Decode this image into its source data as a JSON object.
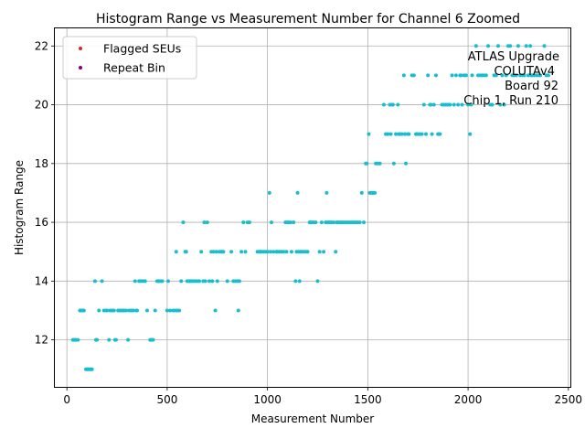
{
  "chart_data": {
    "type": "scatter",
    "title": "Histogram Range vs Measurement Number for Channel 6 Zoomed",
    "xlabel": "Measurement Number",
    "ylabel": "Histogram Range",
    "xlim": [
      -60,
      2510
    ],
    "ylim": [
      10.4,
      22.6
    ],
    "xticks": [
      0,
      500,
      1000,
      1500,
      2000,
      2500
    ],
    "yticks": [
      12,
      14,
      16,
      18,
      20,
      22
    ],
    "grid": true,
    "legend_position": "top-left",
    "legend": [
      {
        "label": "Flagged SEUs",
        "color": "#d62728"
      },
      {
        "label": "Repeat Bin",
        "color": "#800080"
      }
    ],
    "annotation": [
      "ATLAS Upgrade",
      "COLUTAv4",
      "Board 92",
      "Chip 1, Run 210"
    ],
    "point_color": "#17becf",
    "series": [
      {
        "points": [
          [
            30,
            12
          ],
          [
            35,
            12
          ],
          [
            40,
            12
          ],
          [
            45,
            12
          ],
          [
            55,
            12
          ],
          [
            65,
            13
          ],
          [
            70,
            13
          ],
          [
            75,
            13
          ],
          [
            80,
            13
          ],
          [
            85,
            13
          ],
          [
            95,
            11
          ],
          [
            100,
            11
          ],
          [
            105,
            11
          ],
          [
            110,
            11
          ],
          [
            115,
            11
          ],
          [
            120,
            11
          ],
          [
            125,
            11
          ],
          [
            140,
            14
          ],
          [
            145,
            12
          ],
          [
            150,
            12
          ],
          [
            160,
            13
          ],
          [
            175,
            14
          ],
          [
            185,
            13
          ],
          [
            195,
            13
          ],
          [
            200,
            13
          ],
          [
            210,
            12
          ],
          [
            215,
            13
          ],
          [
            225,
            13
          ],
          [
            235,
            13
          ],
          [
            240,
            12
          ],
          [
            245,
            12
          ],
          [
            255,
            13
          ],
          [
            265,
            13
          ],
          [
            270,
            13
          ],
          [
            280,
            13
          ],
          [
            285,
            13
          ],
          [
            295,
            13
          ],
          [
            305,
            12
          ],
          [
            310,
            13
          ],
          [
            320,
            13
          ],
          [
            330,
            13
          ],
          [
            340,
            14
          ],
          [
            345,
            13
          ],
          [
            350,
            13
          ],
          [
            360,
            14
          ],
          [
            370,
            14
          ],
          [
            380,
            14
          ],
          [
            390,
            14
          ],
          [
            400,
            13
          ],
          [
            415,
            12
          ],
          [
            420,
            12
          ],
          [
            425,
            12
          ],
          [
            430,
            12
          ],
          [
            440,
            13
          ],
          [
            450,
            14
          ],
          [
            455,
            14
          ],
          [
            460,
            14
          ],
          [
            470,
            14
          ],
          [
            475,
            14
          ],
          [
            500,
            13
          ],
          [
            505,
            14
          ],
          [
            515,
            13
          ],
          [
            530,
            13
          ],
          [
            540,
            13
          ],
          [
            545,
            15
          ],
          [
            550,
            13
          ],
          [
            560,
            13
          ],
          [
            570,
            14
          ],
          [
            580,
            16
          ],
          [
            590,
            15
          ],
          [
            595,
            15
          ],
          [
            600,
            14
          ],
          [
            610,
            14
          ],
          [
            615,
            14
          ],
          [
            620,
            14
          ],
          [
            630,
            14
          ],
          [
            640,
            14
          ],
          [
            650,
            14
          ],
          [
            660,
            14
          ],
          [
            670,
            15
          ],
          [
            680,
            14
          ],
          [
            685,
            16
          ],
          [
            690,
            14
          ],
          [
            700,
            16
          ],
          [
            710,
            14
          ],
          [
            720,
            15
          ],
          [
            725,
            14
          ],
          [
            730,
            15
          ],
          [
            740,
            13
          ],
          [
            745,
            15
          ],
          [
            750,
            14
          ],
          [
            760,
            15
          ],
          [
            770,
            15
          ],
          [
            775,
            15
          ],
          [
            780,
            15
          ],
          [
            800,
            14
          ],
          [
            820,
            15
          ],
          [
            830,
            14
          ],
          [
            840,
            14
          ],
          [
            850,
            14
          ],
          [
            855,
            13
          ],
          [
            860,
            14
          ],
          [
            870,
            15
          ],
          [
            880,
            16
          ],
          [
            890,
            15
          ],
          [
            900,
            16
          ],
          [
            910,
            16
          ],
          [
            950,
            15
          ],
          [
            960,
            15
          ],
          [
            965,
            15
          ],
          [
            970,
            15
          ],
          [
            980,
            15
          ],
          [
            990,
            15
          ],
          [
            1000,
            15
          ],
          [
            1010,
            17
          ],
          [
            1015,
            15
          ],
          [
            1020,
            16
          ],
          [
            1030,
            15
          ],
          [
            1045,
            15
          ],
          [
            1050,
            15
          ],
          [
            1060,
            15
          ],
          [
            1070,
            15
          ],
          [
            1080,
            15
          ],
          [
            1090,
            16
          ],
          [
            1095,
            15
          ],
          [
            1100,
            16
          ],
          [
            1105,
            16
          ],
          [
            1115,
            16
          ],
          [
            1120,
            15
          ],
          [
            1130,
            16
          ],
          [
            1140,
            14
          ],
          [
            1145,
            15
          ],
          [
            1150,
            17
          ],
          [
            1155,
            15
          ],
          [
            1160,
            14
          ],
          [
            1165,
            15
          ],
          [
            1170,
            15
          ],
          [
            1180,
            15
          ],
          [
            1190,
            15
          ],
          [
            1200,
            15
          ],
          [
            1210,
            16
          ],
          [
            1215,
            16
          ],
          [
            1220,
            16
          ],
          [
            1230,
            16
          ],
          [
            1240,
            16
          ],
          [
            1250,
            14
          ],
          [
            1260,
            15
          ],
          [
            1270,
            16
          ],
          [
            1280,
            15
          ],
          [
            1290,
            16
          ],
          [
            1295,
            17
          ],
          [
            1300,
            16
          ],
          [
            1305,
            16
          ],
          [
            1310,
            16
          ],
          [
            1320,
            16
          ],
          [
            1330,
            16
          ],
          [
            1340,
            15
          ],
          [
            1345,
            16
          ],
          [
            1350,
            16
          ],
          [
            1360,
            16
          ],
          [
            1370,
            16
          ],
          [
            1380,
            16
          ],
          [
            1390,
            16
          ],
          [
            1400,
            16
          ],
          [
            1410,
            16
          ],
          [
            1420,
            16
          ],
          [
            1430,
            16
          ],
          [
            1440,
            16
          ],
          [
            1450,
            16
          ],
          [
            1460,
            16
          ],
          [
            1470,
            17
          ],
          [
            1480,
            16
          ],
          [
            1490,
            18
          ],
          [
            1495,
            18
          ],
          [
            1505,
            19
          ],
          [
            1510,
            17
          ],
          [
            1515,
            17
          ],
          [
            1520,
            17
          ],
          [
            1525,
            17
          ],
          [
            1530,
            17
          ],
          [
            1535,
            17
          ],
          [
            1540,
            18
          ],
          [
            1550,
            18
          ],
          [
            1560,
            18
          ],
          [
            1580,
            20
          ],
          [
            1590,
            19
          ],
          [
            1600,
            19
          ],
          [
            1610,
            20
          ],
          [
            1615,
            19
          ],
          [
            1620,
            20
          ],
          [
            1625,
            20
          ],
          [
            1630,
            18
          ],
          [
            1640,
            19
          ],
          [
            1650,
            20
          ],
          [
            1655,
            19
          ],
          [
            1660,
            19
          ],
          [
            1670,
            19
          ],
          [
            1680,
            21
          ],
          [
            1685,
            19
          ],
          [
            1690,
            18
          ],
          [
            1700,
            19
          ],
          [
            1705,
            19
          ],
          [
            1720,
            21
          ],
          [
            1730,
            21
          ],
          [
            1740,
            19
          ],
          [
            1745,
            19
          ],
          [
            1750,
            19
          ],
          [
            1760,
            19
          ],
          [
            1770,
            19
          ],
          [
            1780,
            20
          ],
          [
            1790,
            19
          ],
          [
            1800,
            21
          ],
          [
            1810,
            20
          ],
          [
            1815,
            20
          ],
          [
            1820,
            19
          ],
          [
            1830,
            20
          ],
          [
            1840,
            21
          ],
          [
            1850,
            19
          ],
          [
            1855,
            19
          ],
          [
            1860,
            19
          ],
          [
            1870,
            20
          ],
          [
            1880,
            20
          ],
          [
            1890,
            20
          ],
          [
            1900,
            20
          ],
          [
            1910,
            20
          ],
          [
            1920,
            21
          ],
          [
            1930,
            20
          ],
          [
            1940,
            21
          ],
          [
            1950,
            20
          ],
          [
            1960,
            21
          ],
          [
            1965,
            21
          ],
          [
            1970,
            20
          ],
          [
            1980,
            21
          ],
          [
            1990,
            21
          ],
          [
            2000,
            20
          ],
          [
            2010,
            19
          ],
          [
            2015,
            20
          ],
          [
            2020,
            21
          ],
          [
            2040,
            22
          ],
          [
            2050,
            21
          ],
          [
            2060,
            21
          ],
          [
            2070,
            21
          ],
          [
            2080,
            21
          ],
          [
            2090,
            21
          ],
          [
            2100,
            22
          ],
          [
            2110,
            20
          ],
          [
            2120,
            20
          ],
          [
            2130,
            21
          ],
          [
            2140,
            21
          ],
          [
            2150,
            22
          ],
          [
            2160,
            20
          ],
          [
            2170,
            21
          ],
          [
            2180,
            20
          ],
          [
            2190,
            21
          ],
          [
            2200,
            22
          ],
          [
            2210,
            22
          ],
          [
            2220,
            21
          ],
          [
            2230,
            21
          ],
          [
            2240,
            21
          ],
          [
            2250,
            22
          ],
          [
            2260,
            21
          ],
          [
            2270,
            21
          ],
          [
            2280,
            21
          ],
          [
            2290,
            22
          ],
          [
            2300,
            21
          ],
          [
            2310,
            22
          ],
          [
            2315,
            21
          ],
          [
            2320,
            21
          ],
          [
            2330,
            21
          ],
          [
            2340,
            21
          ],
          [
            2350,
            21
          ],
          [
            2360,
            21
          ],
          [
            2380,
            22
          ],
          [
            2390,
            21
          ],
          [
            2400,
            21
          ]
        ]
      }
    ]
  }
}
